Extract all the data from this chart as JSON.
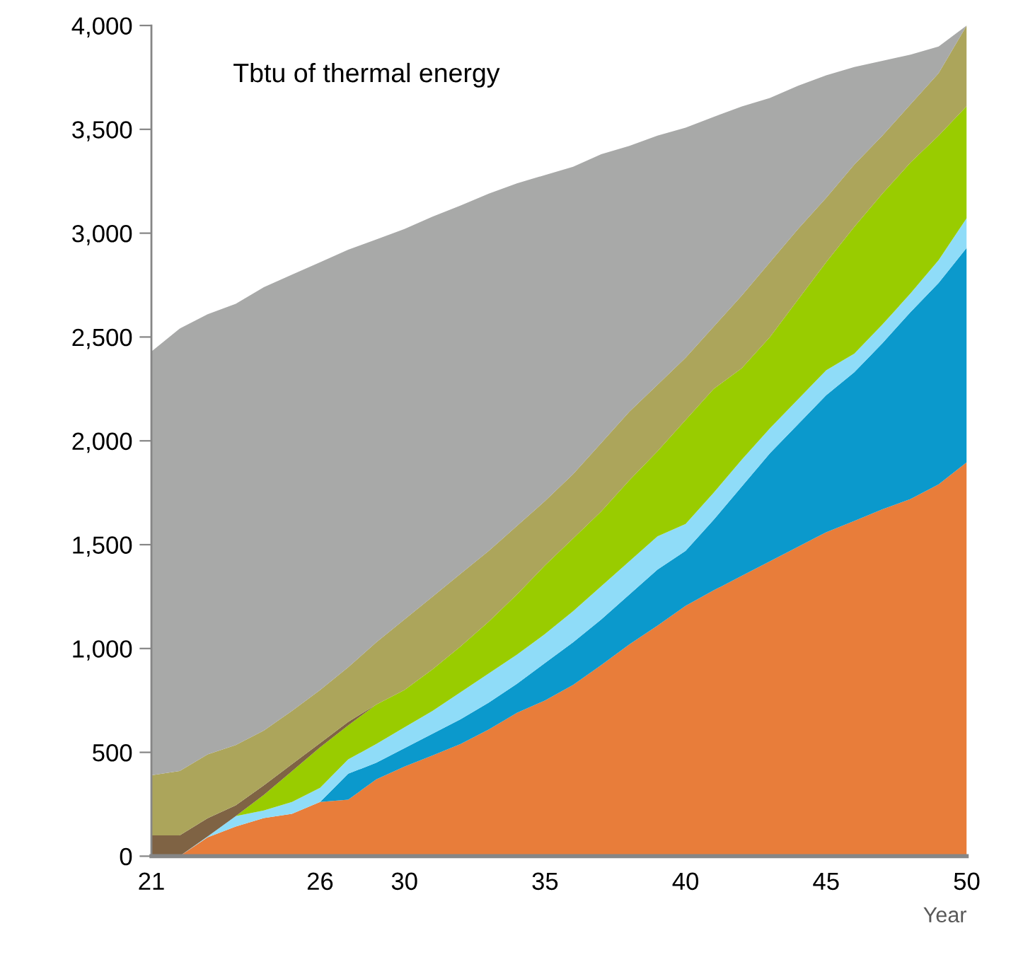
{
  "chart_data": {
    "type": "area",
    "stacked": true,
    "title": "Tbtu of thermal energy",
    "xlabel": "Year",
    "categories": [
      "21",
      null,
      null,
      null,
      null,
      null,
      "26",
      null,
      null,
      "30",
      null,
      null,
      null,
      null,
      "35",
      null,
      null,
      null,
      null,
      "40",
      null,
      null,
      null,
      null,
      "45",
      null,
      null,
      null,
      null,
      "50"
    ],
    "series": [
      {
        "color": "#e87d3a",
        "values": [
          0,
          0,
          91,
          143,
          184,
          204,
          261,
          272,
          370,
          431,
          485,
          540,
          610,
          690,
          750,
          825,
          920,
          1020,
          1110,
          1205,
          1280,
          1350,
          1420,
          1490,
          1560,
          1614,
          1670,
          1720,
          1790,
          1897
        ]
      },
      {
        "color": "#0b99cc",
        "values": [
          0,
          0,
          0,
          0,
          0,
          0,
          0,
          125,
          80,
          89,
          105,
          120,
          130,
          140,
          180,
          205,
          220,
          240,
          270,
          265,
          340,
          430,
          520,
          590,
          660,
          716,
          800,
          900,
          970,
          1033
        ]
      },
      {
        "color": "#8fdcf8",
        "values": [
          0,
          0,
          4,
          50,
          36,
          57,
          68,
          69,
          90,
          100,
          110,
          130,
          140,
          140,
          140,
          150,
          160,
          160,
          160,
          130,
          130,
          130,
          120,
          120,
          120,
          90,
          90,
          90,
          110,
          143
        ]
      },
      {
        "color": "#99cc00",
        "values": [
          0,
          0,
          0,
          0,
          75,
          148,
          195,
          164,
          190,
          180,
          200,
          220,
          250,
          290,
          330,
          350,
          360,
          390,
          410,
          500,
          500,
          440,
          440,
          480,
          520,
          610,
          630,
          630,
          600,
          539
        ]
      },
      {
        "color": "#7f6344",
        "values": [
          100,
          100,
          88,
          52,
          46,
          34,
          21,
          17,
          0,
          null,
          null,
          null,
          null,
          null,
          null,
          null,
          null,
          null,
          null,
          null,
          null,
          null,
          null,
          null,
          null,
          null,
          null,
          null,
          null,
          null
        ]
      },
      {
        "color": "#aca55b",
        "values": [
          290,
          310,
          307,
          290,
          264,
          257,
          255,
          263,
          300,
          340,
          350,
          350,
          340,
          330,
          310,
          310,
          330,
          330,
          320,
          300,
          300,
          350,
          360,
          340,
          310,
          300,
          280,
          280,
          300,
          388
        ]
      },
      {
        "color": "#a8a9a8",
        "values": [
          2040,
          2130,
          2120,
          2125,
          2135,
          2100,
          2060,
          2010,
          1940,
          1880,
          1830,
          1773,
          1720,
          1650,
          1570,
          1480,
          1390,
          1280,
          1200,
          1108,
          1010,
          910,
          791,
          690,
          590,
          470,
          360,
          240,
          129,
          0
        ]
      }
    ],
    "ylim": [
      0,
      4000
    ],
    "yticks": [
      0,
      500,
      {
        "value": 1000,
        "label": "1,000"
      },
      {
        "value": 1500,
        "label": "1,500"
      },
      {
        "value": 2000,
        "label": "2,000"
      },
      {
        "value": 2500,
        "label": "2,500"
      },
      {
        "value": 3000,
        "label": "3,000"
      },
      {
        "value": 3500,
        "label": "3,500"
      },
      {
        "value": 4000,
        "label": "4,000"
      }
    ],
    "grid": false
  }
}
